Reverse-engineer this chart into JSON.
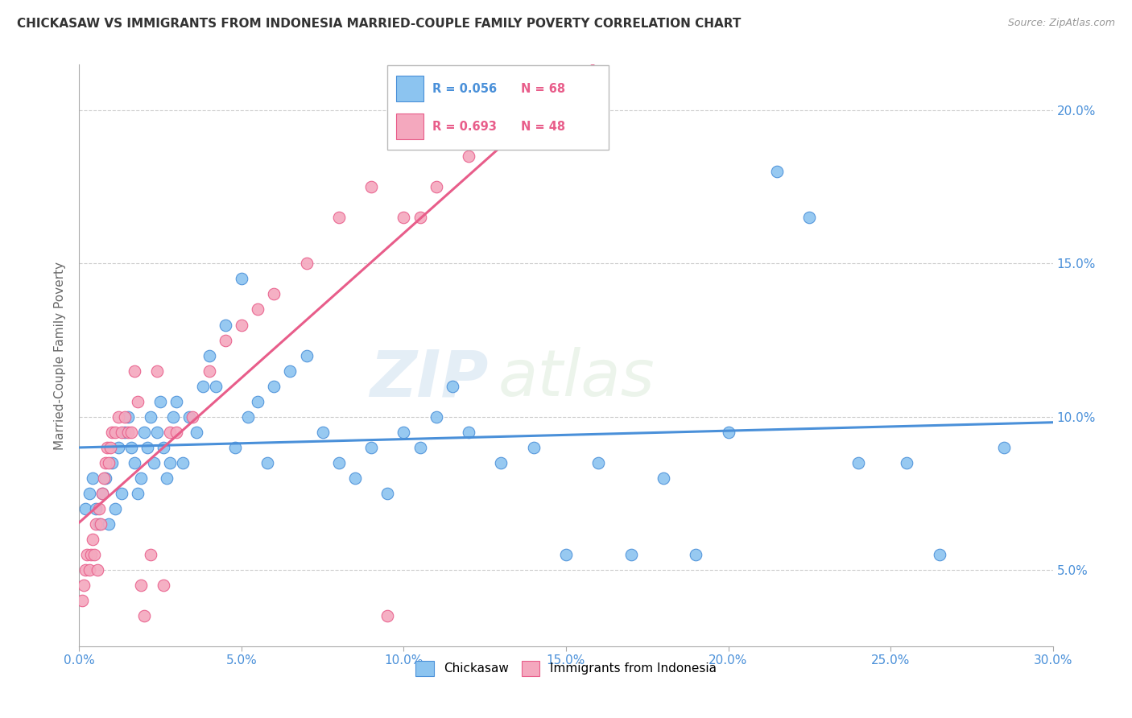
{
  "title": "CHICKASAW VS IMMIGRANTS FROM INDONESIA MARRIED-COUPLE FAMILY POVERTY CORRELATION CHART",
  "source": "Source: ZipAtlas.com",
  "xlabel_vals": [
    0.0,
    5.0,
    10.0,
    15.0,
    20.0,
    25.0,
    30.0
  ],
  "ylabel_vals": [
    5.0,
    10.0,
    15.0,
    20.0
  ],
  "xlim": [
    0.0,
    30.0
  ],
  "ylim": [
    2.5,
    21.5
  ],
  "legend_label1": "Chickasaw",
  "legend_label2": "Immigrants from Indonesia",
  "r1": "0.056",
  "n1": "68",
  "r2": "0.693",
  "n2": "48",
  "color1": "#8cc4f0",
  "color2": "#f4a8be",
  "line_color1": "#4a90d9",
  "line_color2": "#e85d8a",
  "watermark": "ZIPatlas",
  "chickasaw_x": [
    0.2,
    0.3,
    0.4,
    0.5,
    0.6,
    0.7,
    0.8,
    0.9,
    1.0,
    1.1,
    1.2,
    1.3,
    1.4,
    1.5,
    1.6,
    1.7,
    1.8,
    1.9,
    2.0,
    2.1,
    2.2,
    2.3,
    2.4,
    2.5,
    2.6,
    2.7,
    2.8,
    2.9,
    3.0,
    3.2,
    3.4,
    3.6,
    3.8,
    4.0,
    4.2,
    4.5,
    4.8,
    5.0,
    5.2,
    5.5,
    5.8,
    6.0,
    6.5,
    7.0,
    7.5,
    8.0,
    8.5,
    9.0,
    9.5,
    10.0,
    10.5,
    11.0,
    11.5,
    12.0,
    13.0,
    14.0,
    15.0,
    16.0,
    17.0,
    18.0,
    19.0,
    20.0,
    21.5,
    22.5,
    24.0,
    25.5,
    26.5,
    28.5
  ],
  "chickasaw_y": [
    7.0,
    7.5,
    8.0,
    7.0,
    6.5,
    7.5,
    8.0,
    6.5,
    8.5,
    7.0,
    9.0,
    7.5,
    9.5,
    10.0,
    9.0,
    8.5,
    7.5,
    8.0,
    9.5,
    9.0,
    10.0,
    8.5,
    9.5,
    10.5,
    9.0,
    8.0,
    8.5,
    10.0,
    10.5,
    8.5,
    10.0,
    9.5,
    11.0,
    12.0,
    11.0,
    13.0,
    9.0,
    14.5,
    10.0,
    10.5,
    8.5,
    11.0,
    11.5,
    12.0,
    9.5,
    8.5,
    8.0,
    9.0,
    7.5,
    9.5,
    9.0,
    10.0,
    11.0,
    9.5,
    8.5,
    9.0,
    5.5,
    8.5,
    5.5,
    8.0,
    5.5,
    9.5,
    18.0,
    16.5,
    8.5,
    8.5,
    5.5,
    9.0
  ],
  "indonesia_x": [
    0.1,
    0.15,
    0.2,
    0.25,
    0.3,
    0.35,
    0.4,
    0.45,
    0.5,
    0.55,
    0.6,
    0.65,
    0.7,
    0.75,
    0.8,
    0.85,
    0.9,
    0.95,
    1.0,
    1.1,
    1.2,
    1.3,
    1.4,
    1.5,
    1.6,
    1.7,
    1.8,
    1.9,
    2.0,
    2.2,
    2.4,
    2.6,
    2.8,
    3.0,
    3.5,
    4.0,
    4.5,
    5.0,
    5.5,
    6.0,
    7.0,
    8.0,
    9.0,
    9.5,
    10.0,
    10.5,
    11.0,
    12.0
  ],
  "indonesia_y": [
    4.0,
    4.5,
    5.0,
    5.5,
    5.0,
    5.5,
    6.0,
    5.5,
    6.5,
    5.0,
    7.0,
    6.5,
    7.5,
    8.0,
    8.5,
    9.0,
    8.5,
    9.0,
    9.5,
    9.5,
    10.0,
    9.5,
    10.0,
    9.5,
    9.5,
    11.5,
    10.5,
    4.5,
    3.5,
    5.5,
    11.5,
    4.5,
    9.5,
    9.5,
    10.0,
    11.5,
    12.5,
    13.0,
    13.5,
    14.0,
    15.0,
    16.5,
    17.5,
    3.5,
    16.5,
    16.5,
    17.5,
    18.5
  ]
}
